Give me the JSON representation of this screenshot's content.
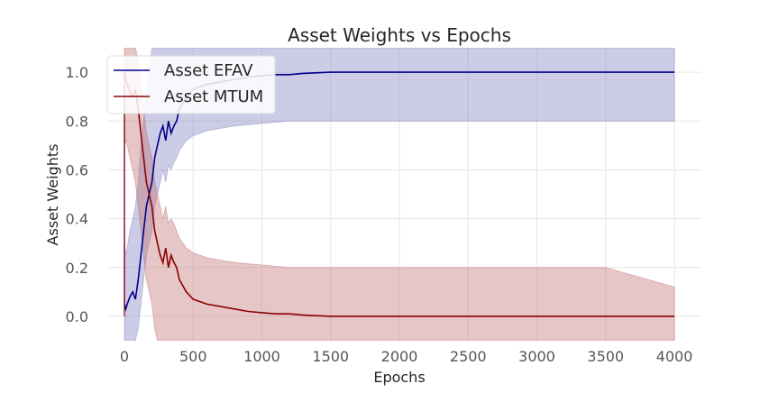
{
  "chart_data": {
    "type": "line",
    "title": "Asset Weights vs Epochs",
    "xlabel": "Epochs",
    "ylabel": "Asset Weights",
    "xlim": [
      0,
      4000
    ],
    "ylim": [
      -0.1,
      1.1
    ],
    "x_ticks": [
      0,
      500,
      1000,
      1500,
      2000,
      2500,
      3000,
      3500,
      4000
    ],
    "y_ticks": [
      0.0,
      0.2,
      0.4,
      0.6,
      0.8,
      1.0
    ],
    "grid": true,
    "legend_position": "top-left",
    "series": [
      {
        "name": "Asset EFAV",
        "color": "#00008b",
        "band_color": "#8080c0",
        "x": [
          0,
          10,
          20,
          40,
          60,
          80,
          100,
          120,
          140,
          160,
          180,
          200,
          220,
          240,
          260,
          280,
          300,
          320,
          340,
          360,
          380,
          400,
          450,
          500,
          600,
          700,
          800,
          900,
          1000,
          1100,
          1200,
          1300,
          1500,
          2000,
          2500,
          3000,
          3500,
          4000
        ],
        "values": [
          0.05,
          0.03,
          0.05,
          0.08,
          0.1,
          0.07,
          0.15,
          0.25,
          0.35,
          0.45,
          0.5,
          0.55,
          0.65,
          0.7,
          0.75,
          0.78,
          0.72,
          0.8,
          0.75,
          0.78,
          0.8,
          0.85,
          0.9,
          0.93,
          0.95,
          0.96,
          0.97,
          0.98,
          0.985,
          0.99,
          0.99,
          0.995,
          1.0,
          1.0,
          1.0,
          1.0,
          1.0,
          1.0
        ],
        "lower": [
          -0.1,
          -0.1,
          -0.1,
          -0.1,
          -0.1,
          -0.1,
          -0.05,
          0.05,
          0.15,
          0.25,
          0.3,
          0.35,
          0.45,
          0.5,
          0.55,
          0.6,
          0.55,
          0.62,
          0.6,
          0.63,
          0.65,
          0.68,
          0.72,
          0.74,
          0.76,
          0.77,
          0.78,
          0.785,
          0.79,
          0.795,
          0.8,
          0.8,
          0.8,
          0.8,
          0.8,
          0.8,
          0.8,
          0.8
        ],
        "upper": [
          0.3,
          0.25,
          0.28,
          0.35,
          0.4,
          0.45,
          0.55,
          0.7,
          0.8,
          0.9,
          1.0,
          1.1,
          1.1,
          1.1,
          1.1,
          1.1,
          1.1,
          1.1,
          1.1,
          1.1,
          1.1,
          1.1,
          1.1,
          1.1,
          1.1,
          1.1,
          1.1,
          1.1,
          1.1,
          1.1,
          1.1,
          1.1,
          1.1,
          1.1,
          1.1,
          1.1,
          1.1,
          1.1
        ]
      },
      {
        "name": "Asset MTUM",
        "color": "#8b0000",
        "band_color": "#c07070",
        "x": [
          0,
          10,
          20,
          40,
          60,
          80,
          100,
          120,
          140,
          160,
          180,
          200,
          220,
          240,
          260,
          280,
          300,
          320,
          340,
          360,
          380,
          400,
          450,
          500,
          600,
          700,
          800,
          900,
          1000,
          1100,
          1200,
          1300,
          1500,
          2000,
          2500,
          3000,
          3500,
          4000
        ],
        "values": [
          1.0,
          0.97,
          0.95,
          0.92,
          0.9,
          0.93,
          0.85,
          0.75,
          0.65,
          0.55,
          0.5,
          0.45,
          0.35,
          0.3,
          0.25,
          0.22,
          0.28,
          0.2,
          0.25,
          0.22,
          0.2,
          0.15,
          0.1,
          0.07,
          0.05,
          0.04,
          0.03,
          0.02,
          0.015,
          0.01,
          0.01,
          0.005,
          0.0,
          0.0,
          0.0,
          0.0,
          0.0,
          0.0
        ],
        "lower": [
          0.7,
          0.72,
          0.7,
          0.65,
          0.6,
          0.55,
          0.45,
          0.35,
          0.25,
          0.15,
          0.1,
          0.05,
          -0.05,
          -0.1,
          -0.1,
          -0.1,
          -0.1,
          -0.1,
          -0.1,
          -0.1,
          -0.1,
          -0.1,
          -0.1,
          -0.1,
          -0.1,
          -0.1,
          -0.1,
          -0.1,
          -0.1,
          -0.1,
          -0.1,
          -0.1,
          -0.1,
          -0.1,
          -0.1,
          -0.1,
          -0.1,
          -0.1
        ],
        "upper": [
          1.1,
          1.1,
          1.1,
          1.1,
          1.1,
          1.1,
          1.05,
          0.95,
          0.85,
          0.75,
          0.7,
          0.65,
          0.55,
          0.5,
          0.45,
          0.4,
          0.45,
          0.38,
          0.4,
          0.38,
          0.35,
          0.32,
          0.28,
          0.26,
          0.24,
          0.23,
          0.22,
          0.215,
          0.21,
          0.205,
          0.2,
          0.2,
          0.2,
          0.2,
          0.2,
          0.2,
          0.2,
          0.12
        ]
      }
    ]
  }
}
